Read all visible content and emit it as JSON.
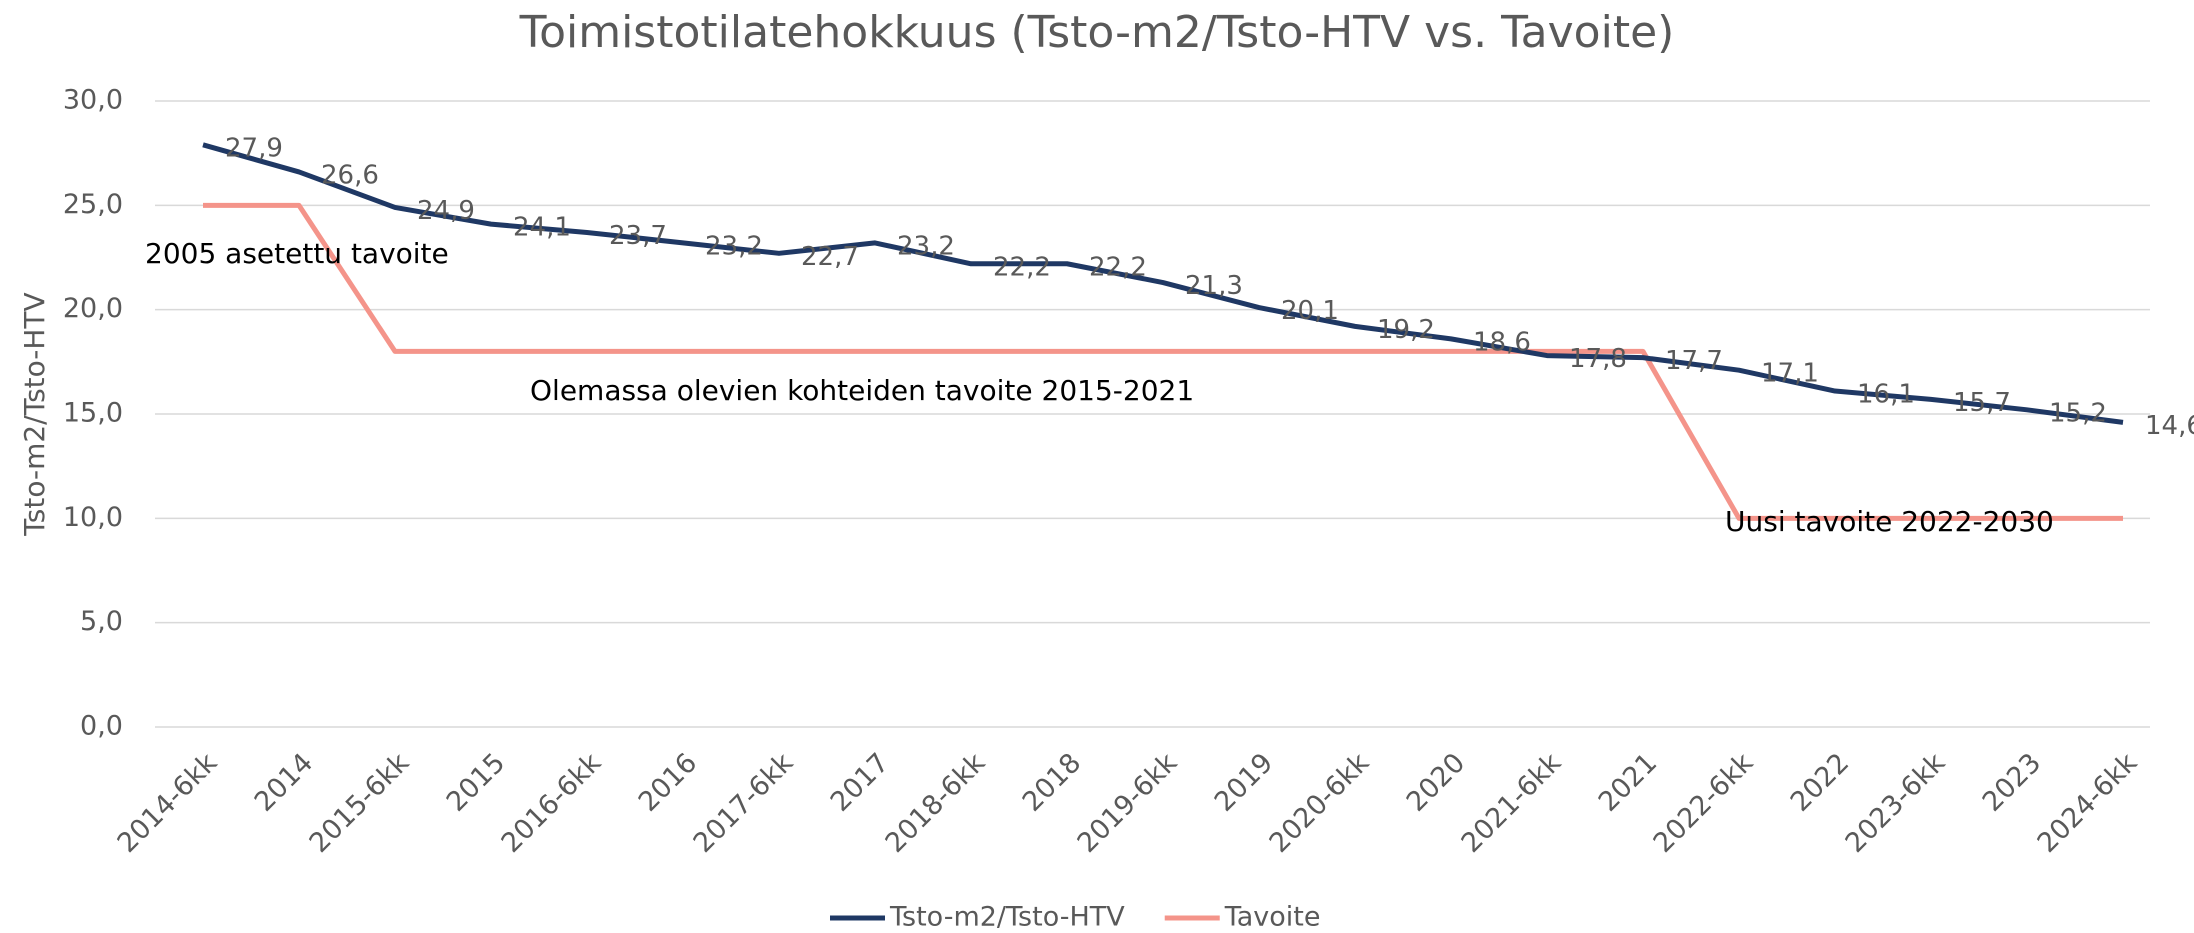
{
  "chart_data": {
    "type": "line",
    "title": "Toimistotilatehokkuus (Tsto-m2/Tsto-HTV vs. Tavoite)",
    "y_label": "Tsto-m2/Tsto-HTV",
    "categories": [
      "2014-6kk",
      "2014",
      "2015-6kk",
      "2015",
      "2016-6kk",
      "2016",
      "2017-6kk",
      "2017",
      "2018-6kk",
      "2018",
      "2019-6kk",
      "2019",
      "2020-6kk",
      "2020",
      "2021-6kk",
      "2021",
      "2022-6kk",
      "2022",
      "2023-6kk",
      "2023",
      "2024-6kk"
    ],
    "series": [
      {
        "name": "Tsto-m2/Tsto-HTV",
        "color": "#1f3864",
        "values": [
          27.9,
          26.6,
          24.9,
          24.1,
          23.7,
          23.2,
          22.7,
          23.2,
          22.2,
          22.2,
          21.3,
          20.1,
          19.2,
          18.6,
          17.8,
          17.7,
          17.1,
          16.1,
          15.7,
          15.2,
          14.6
        ],
        "value_labels": [
          "27,9",
          "26,6",
          "24,9",
          "24,1",
          "23,7",
          "23,2",
          "22,7",
          "23,2",
          "22,2",
          "22,2",
          "21,3",
          "20,1",
          "19,2",
          "18,6",
          "17,8",
          "17,7",
          "17,1",
          "16,1",
          "15,7",
          "15,2",
          "14,6"
        ]
      },
      {
        "name": "Tavoite",
        "color": "#f4948a",
        "values": [
          25,
          25,
          18,
          18,
          18,
          18,
          18,
          18,
          18,
          18,
          18,
          18,
          18,
          18,
          18,
          18,
          10,
          10,
          10,
          10,
          10
        ]
      }
    ],
    "annotations": [
      "2005 asetettu tavoite",
      "Olemassa olevien kohteiden tavoite 2015-2021",
      "Uusi tavoite 2022-2030"
    ],
    "ylim": [
      0,
      30
    ],
    "yticks": [
      {
        "value": 0,
        "label": "0,0"
      },
      {
        "value": 5,
        "label": "5,0"
      },
      {
        "value": 10,
        "label": "10,0"
      },
      {
        "value": 15,
        "label": "15,0"
      },
      {
        "value": 20,
        "label": "20,0"
      },
      {
        "value": 25,
        "label": "25,0"
      },
      {
        "value": 30,
        "label": "30,0"
      }
    ],
    "grid": true,
    "legend": "bottom"
  }
}
